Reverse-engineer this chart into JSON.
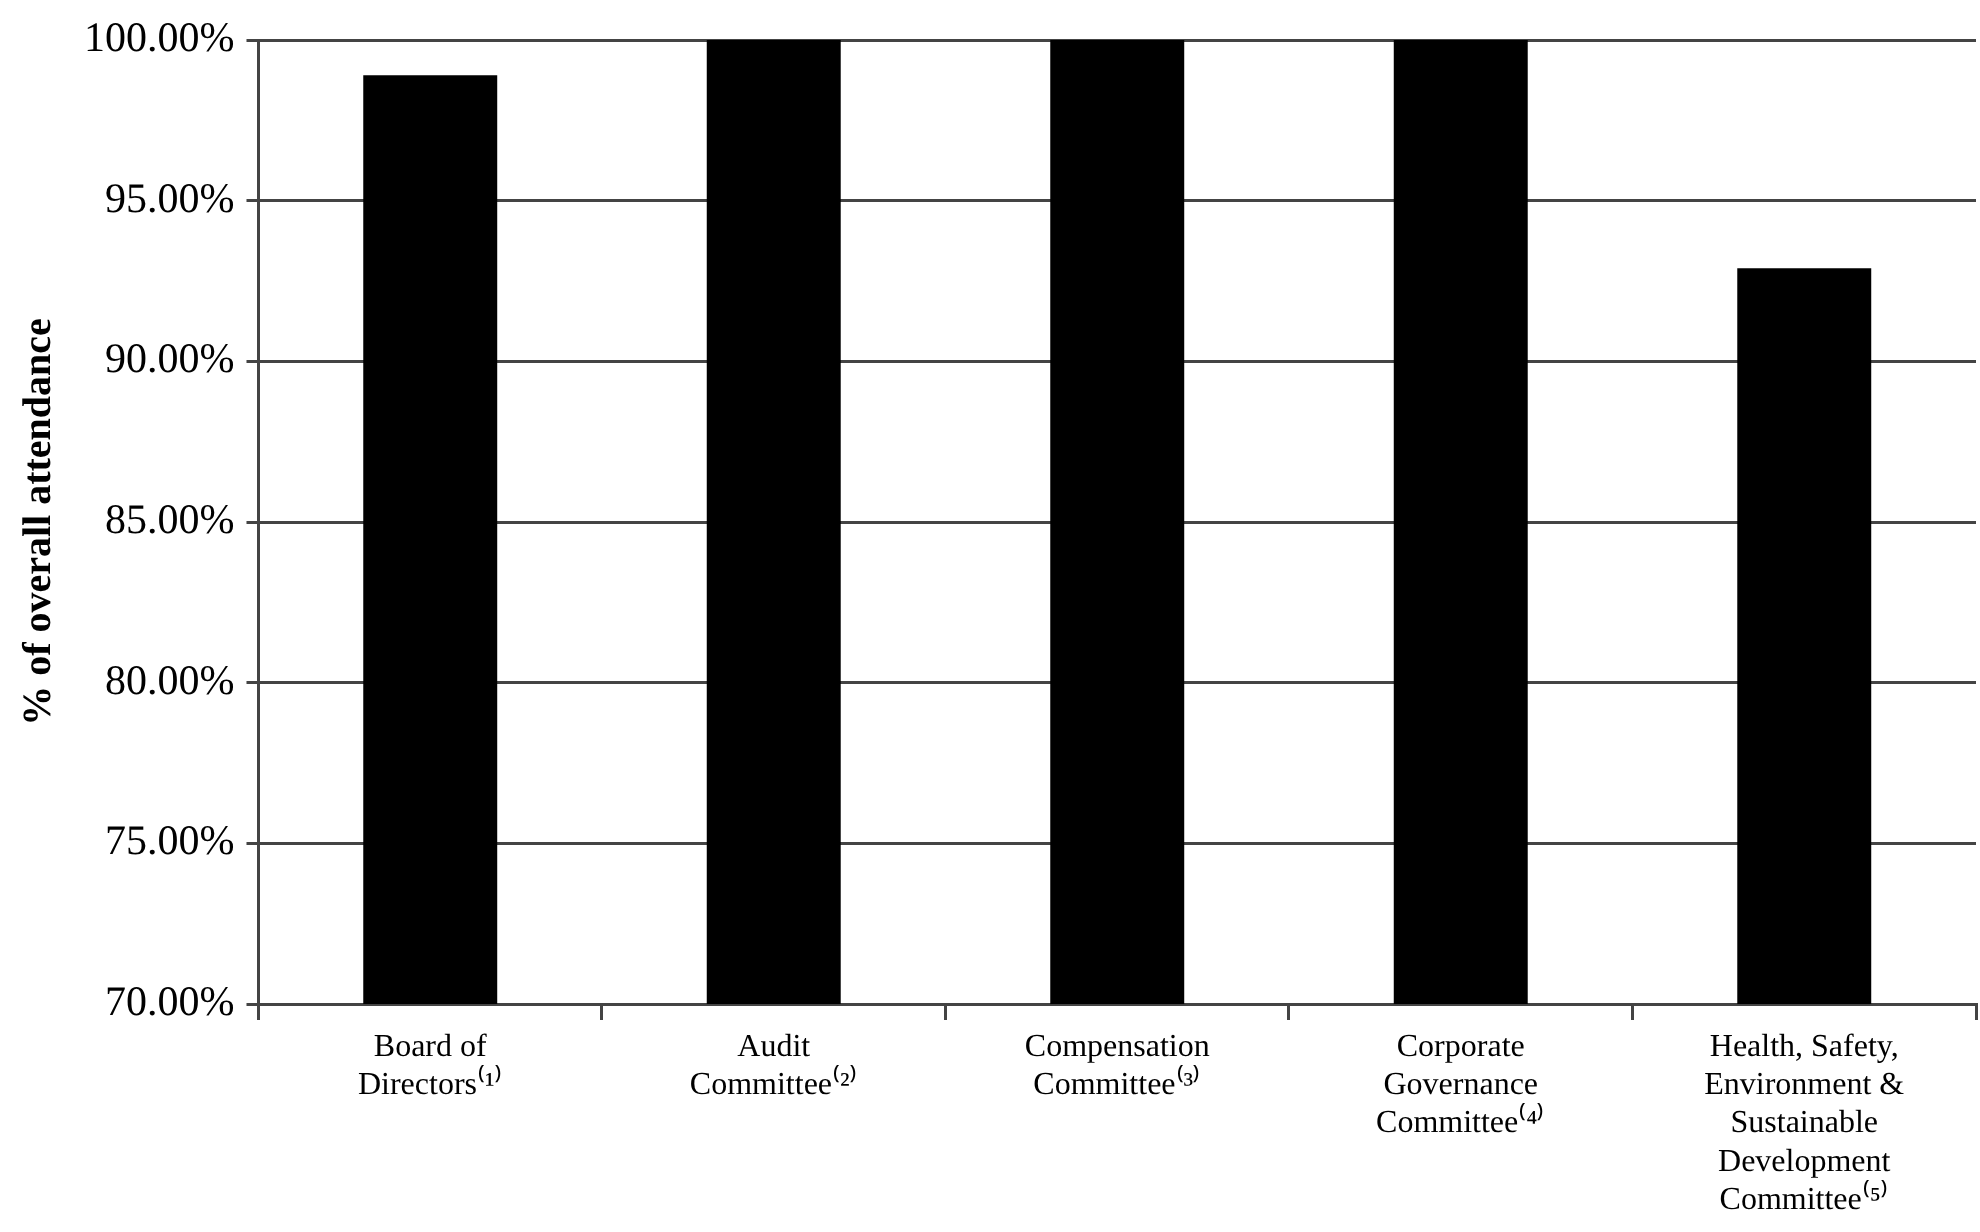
{
  "chart_data": {
    "type": "bar",
    "ylabel": "% of overall attendance",
    "categories": [
      "Board of Directors⁽¹⁾",
      "Audit Committee⁽²⁾",
      "Compensation Committee⁽³⁾",
      "Corporate Governance Committee⁽⁴⁾",
      "Health, Safety, Environment & Sustainable Development Committee⁽⁵⁾"
    ],
    "values": [
      98.9,
      100,
      100,
      100,
      92.9
    ],
    "color": "#000000",
    "ylim": [
      70,
      100
    ],
    "yticks": [
      {
        "value": 70,
        "label": "70.00%"
      },
      {
        "value": 75,
        "label": "75.00%"
      },
      {
        "value": 80,
        "label": "80.00%"
      },
      {
        "value": 85,
        "label": "85.00%"
      },
      {
        "value": 90,
        "label": "90.00%"
      },
      {
        "value": 95,
        "label": "95.00%"
      },
      {
        "value": 100,
        "label": "100.00%"
      }
    ],
    "grid": "y",
    "legend": false
  }
}
